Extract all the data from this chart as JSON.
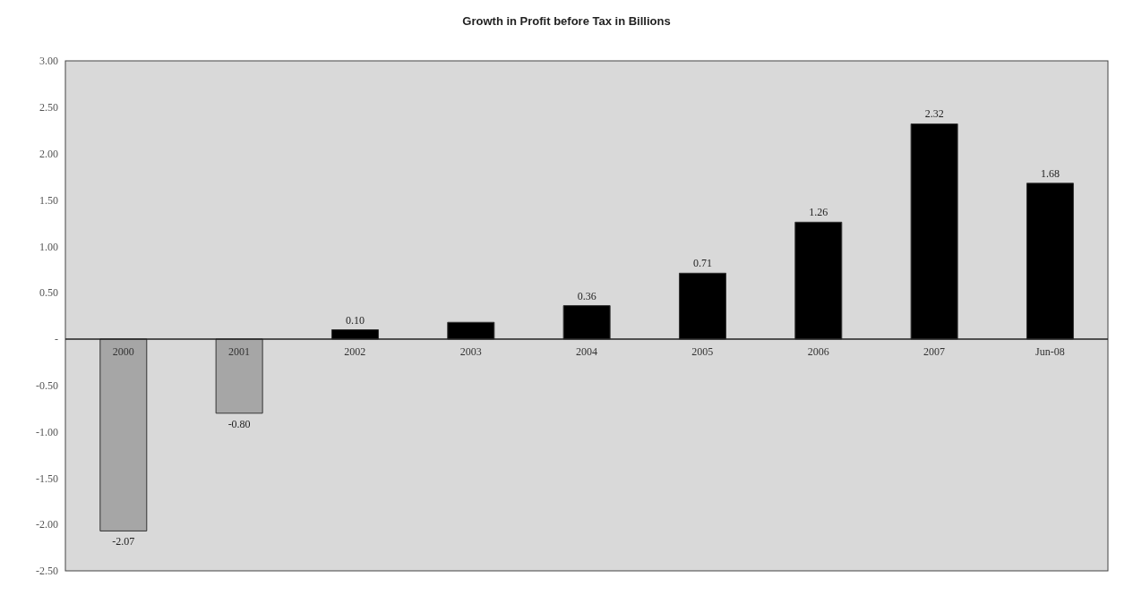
{
  "chart_data": {
    "type": "bar",
    "title": "Growth in Profit before Tax in Billions",
    "categories": [
      "2000",
      "2001",
      "2002",
      "2003",
      "2004",
      "2005",
      "2006",
      "2007",
      "Jun-08"
    ],
    "values": [
      -2.07,
      -0.8,
      0.1,
      0.18,
      0.36,
      0.71,
      1.26,
      2.32,
      1.68
    ],
    "colors": [
      "#a6a6a6",
      "#a6a6a6",
      "#000000",
      "#000000",
      "#000000",
      "#000000",
      "#000000",
      "#000000",
      "#000000"
    ],
    "value_labels": [
      "-2.07",
      "-0.80",
      "0.10",
      null,
      "0.36",
      "0.71",
      "1.26",
      "2.32",
      "1.68"
    ],
    "ylim": [
      -2.5,
      3
    ],
    "yticks": [
      {
        "value": -2.5,
        "label": "-2.50"
      },
      {
        "value": -2,
        "label": "-2.00"
      },
      {
        "value": -1.5,
        "label": "-1.50"
      },
      {
        "value": -1,
        "label": "-1.00"
      },
      {
        "value": -0.5,
        "label": "-0.50"
      },
      {
        "value": 0,
        "label": "-"
      },
      {
        "value": 0.5,
        "label": "0.50"
      },
      {
        "value": 1,
        "label": "1.00"
      },
      {
        "value": 1.5,
        "label": "1.50"
      },
      {
        "value": 2,
        "label": "2.00"
      },
      {
        "value": 2.5,
        "label": "2.50"
      },
      {
        "value": 3,
        "label": "3.00"
      }
    ],
    "grid": false
  }
}
